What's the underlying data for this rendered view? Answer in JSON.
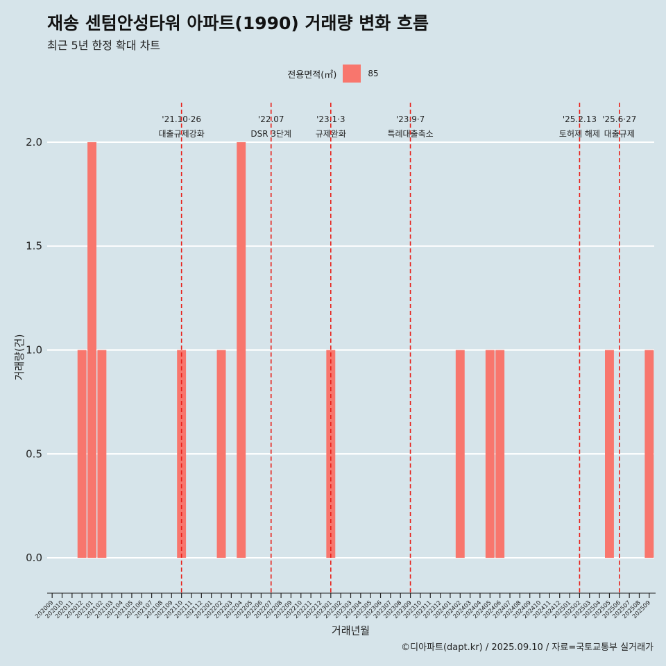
{
  "header": {
    "title": "재송 센텀안성타워 아파트(1990) 거래량 변화 흐름",
    "subtitle": "최근 5년 한정 확대 차트"
  },
  "legend": {
    "title": "전용면적(㎡)",
    "label": "85",
    "color": "#f8766d"
  },
  "caption": "©디아파트(dapt.kr) / 2025.09.10 / 자료=국토교통부 실거래가",
  "chart_data": {
    "type": "bar",
    "title": "재송 센텀안성타워 아파트(1990) 거래량 변화 흐름",
    "xlabel": "거래년월",
    "ylabel": "거래량(건)",
    "ylim": [
      -0.17,
      2.2
    ],
    "yticks": [
      0.0,
      0.5,
      1.0,
      1.5,
      2.0
    ],
    "ytick_labels": [
      "0.0",
      "0.5",
      "1.0",
      "1.5",
      "2.0"
    ],
    "grid": true,
    "legend_position": "top",
    "categories": [
      "202009",
      "202010",
      "202011",
      "202012",
      "202101",
      "202102",
      "202103",
      "202104",
      "202105",
      "202106",
      "202107",
      "202108",
      "202109",
      "202110",
      "202111",
      "202112",
      "202201",
      "202202",
      "202203",
      "202204",
      "202205",
      "202206",
      "202207",
      "202208",
      "202209",
      "202210",
      "202211",
      "202212",
      "202301",
      "202302",
      "202303",
      "202304",
      "202305",
      "202306",
      "202307",
      "202308",
      "202309",
      "202310",
      "202311",
      "202312",
      "202401",
      "202402",
      "202403",
      "202404",
      "202405",
      "202406",
      "202407",
      "202408",
      "202409",
      "202410",
      "202411",
      "202412",
      "202501",
      "202502",
      "202503",
      "202504",
      "202505",
      "202506",
      "202507",
      "202508",
      "202509"
    ],
    "series": [
      {
        "name": "85",
        "values": [
          0,
          0,
          0,
          1,
          2,
          1,
          0,
          0,
          0,
          0,
          0,
          0,
          0,
          1,
          0,
          0,
          0,
          1,
          0,
          2,
          0,
          0,
          0,
          0,
          0,
          0,
          0,
          0,
          1,
          0,
          0,
          0,
          0,
          0,
          0,
          0,
          0,
          0,
          0,
          0,
          0,
          1,
          0,
          0,
          1,
          1,
          0,
          0,
          0,
          0,
          0,
          0,
          0,
          0,
          0,
          0,
          1,
          0,
          0,
          0,
          1
        ]
      }
    ],
    "annotations": [
      {
        "x": 13.0,
        "date": "'21.10·26",
        "label": "대출규제강화"
      },
      {
        "x": 22.0,
        "date": "'22.07",
        "label": "DSR 3단계"
      },
      {
        "x": 28.0,
        "date": "'23.1·3",
        "label": "규제완화"
      },
      {
        "x": 36.0,
        "date": "'23.9·7",
        "label": "특례대출축소"
      },
      {
        "x": 53.0,
        "date": "'25.2.13",
        "label": "토허제 해제"
      },
      {
        "x": 57.0,
        "date": "'25.6·27",
        "label": "대출규제"
      }
    ]
  }
}
